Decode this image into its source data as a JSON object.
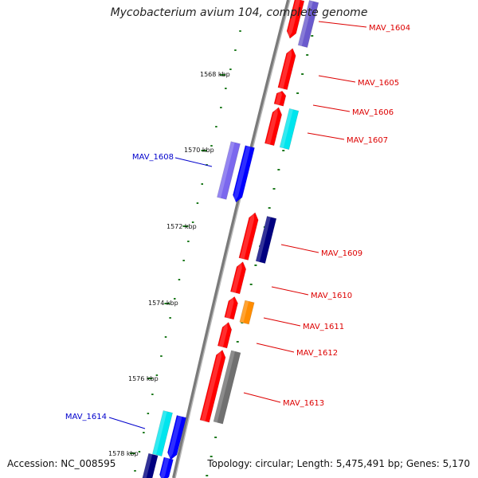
{
  "title": "Mycobacterium avium 104, complete genome",
  "accession_label": "Accession: NC_008595",
  "summary_label": "Topology: circular; Length: 5,475,491 bp; Genes: 5,170",
  "colors": {
    "backbone": "#8a8a8a",
    "tick": "#1e7a1e",
    "label_red": "#dd0000",
    "label_blue": "#0000cc"
  },
  "ticks": [
    "1568 kbp",
    "1570 kbp",
    "1572 kbp",
    "1574 kbp",
    "1576 kbp",
    "1578 kbp"
  ],
  "gene_labels": [
    {
      "text": "MAV_1604",
      "color": "red"
    },
    {
      "text": "MAV_1605",
      "color": "red"
    },
    {
      "text": "MAV_1606",
      "color": "red"
    },
    {
      "text": "MAV_1607",
      "color": "red"
    },
    {
      "text": "MAV_1608",
      "color": "blue"
    },
    {
      "text": "MAV_1609",
      "color": "red"
    },
    {
      "text": "MAV_1610",
      "color": "red"
    },
    {
      "text": "MAV_1611",
      "color": "red"
    },
    {
      "text": "MAV_1612",
      "color": "red"
    },
    {
      "text": "MAV_1613",
      "color": "red"
    },
    {
      "text": "MAV_1614",
      "color": "blue"
    }
  ]
}
